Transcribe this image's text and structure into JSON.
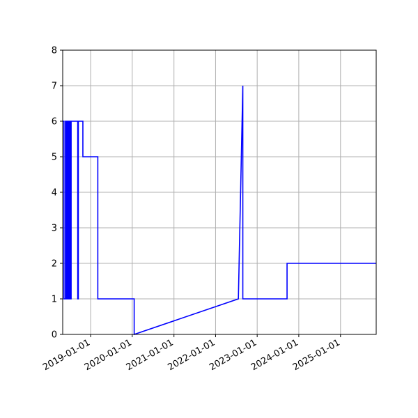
{
  "chart_data": {
    "type": "line",
    "title": "",
    "xlabel": "",
    "ylabel": "",
    "xlim": [
      "2018-05-01",
      "2025-11-10"
    ],
    "ylim": [
      0,
      8
    ],
    "grid": true,
    "line_color": "#0000ff",
    "x_ticks": [
      "2019-01-01",
      "2020-01-01",
      "2021-01-01",
      "2022-01-01",
      "2023-01-01",
      "2024-01-01",
      "2025-01-01"
    ],
    "y_ticks": [
      0,
      1,
      2,
      3,
      4,
      5,
      6,
      7,
      8
    ],
    "series": [
      {
        "x": [
          "2018-05-01",
          "2018-05-12",
          "2018-05-12",
          "2018-05-25",
          "2018-05-25",
          "2018-06-02",
          "2018-06-02",
          "2018-06-08",
          "2018-06-08",
          "2018-06-14",
          "2018-06-14",
          "2018-06-20",
          "2018-06-20",
          "2018-06-26",
          "2018-06-26",
          "2018-07-02",
          "2018-07-02",
          "2018-07-08",
          "2018-07-08",
          "2018-07-14",
          "2018-07-14",
          "2018-07-20",
          "2018-07-20",
          "2018-09-10",
          "2018-09-10",
          "2018-09-15",
          "2018-09-15",
          "2018-10-25",
          "2018-10-25",
          "2019-03-05",
          "2019-03-05",
          "2020-01-01",
          "2020-01-01",
          "2020-01-18",
          "2020-01-18",
          "2022-07-20",
          "2022-08-28",
          "2022-08-28",
          "2023-09-20",
          "2023-09-20",
          "2025-11-10"
        ],
        "y": [
          6,
          6,
          1,
          1,
          6,
          6,
          1,
          1,
          6,
          6,
          1,
          1,
          6,
          6,
          1,
          1,
          6,
          6,
          1,
          1,
          6,
          6,
          6,
          6,
          1,
          1,
          6,
          6,
          5,
          5,
          1,
          1,
          1,
          1,
          0,
          1,
          7,
          1,
          1,
          2,
          2
        ]
      }
    ]
  }
}
